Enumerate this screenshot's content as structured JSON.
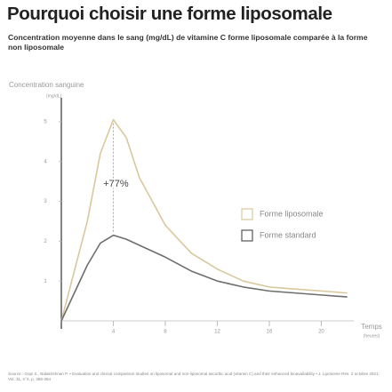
{
  "chart_data": {
    "type": "line",
    "title": "Pourquoi choisir une forme liposomale",
    "subtitle": "Concentration moyenne dans le sang (mg/dL) de vitamine C forme liposomale comparée à la forme non liposomale",
    "y_label": "Concentration sanguine",
    "y_unit": "(mg/dL)",
    "x_label": "Temps",
    "x_unit": "(heures)",
    "annotation": "+77%",
    "source": "Source : Gopi S., Balakrishnan P. • Evaluation and clinical comparison studies on liposomal and non-liposomal ascorbic acid (vitamin C) and their enhanced bioavailability • J. Liposome Res. 2 octobre 2021; Vol. 31, n°4, p. 356-364",
    "x": [
      0,
      2,
      3,
      4,
      5,
      6,
      8,
      10,
      12,
      14,
      16,
      18,
      20,
      22
    ],
    "series": [
      {
        "name": "Forme liposomale",
        "color": "#d9c89c",
        "values": [
          0,
          2.5,
          4.2,
          5.05,
          4.6,
          3.6,
          2.4,
          1.7,
          1.3,
          1.0,
          0.85,
          0.8,
          0.75,
          0.7
        ]
      },
      {
        "name": "Forme standard",
        "color": "#6e6e6e",
        "values": [
          0,
          1.4,
          1.95,
          2.15,
          2.05,
          1.9,
          1.6,
          1.25,
          1.0,
          0.85,
          0.75,
          0.7,
          0.65,
          0.6
        ]
      }
    ],
    "xlim": [
      0,
      22.5
    ],
    "xticks": [
      4,
      8,
      12,
      16,
      20
    ],
    "ylim": [
      0,
      5.6
    ],
    "yticks": [
      1,
      2,
      3,
      4,
      5
    ]
  }
}
